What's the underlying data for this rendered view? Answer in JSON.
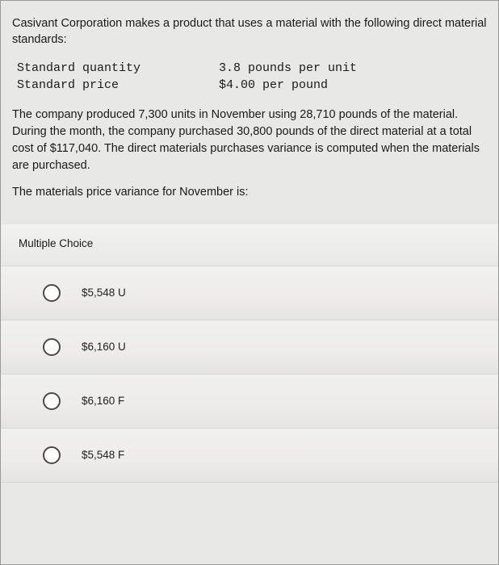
{
  "intro": "Casivant Corporation makes a product that uses a material with the following direct material standards:",
  "standards": {
    "qty_label": "Standard quantity",
    "qty_value": "3.8 pounds per unit",
    "price_label": "Standard price",
    "price_value": "$4.00 per pound"
  },
  "body": "The company produced 7,300 units in November using 28,710 pounds of the material. During the month, the company purchased 30,800 pounds of the direct material at a total cost of $117,040. The direct materials purchases variance is computed when the materials are purchased.",
  "question": "The materials price variance for November is:",
  "mc_header": "Multiple Choice",
  "choices": [
    {
      "label": "$5,548 U"
    },
    {
      "label": "$6,160 U"
    },
    {
      "label": "$6,160 F"
    },
    {
      "label": "$5,548 F"
    }
  ],
  "colors": {
    "page_bg": "#e8e8e6",
    "text": "#1a1a1a",
    "radio_border": "#4a4a4a"
  }
}
